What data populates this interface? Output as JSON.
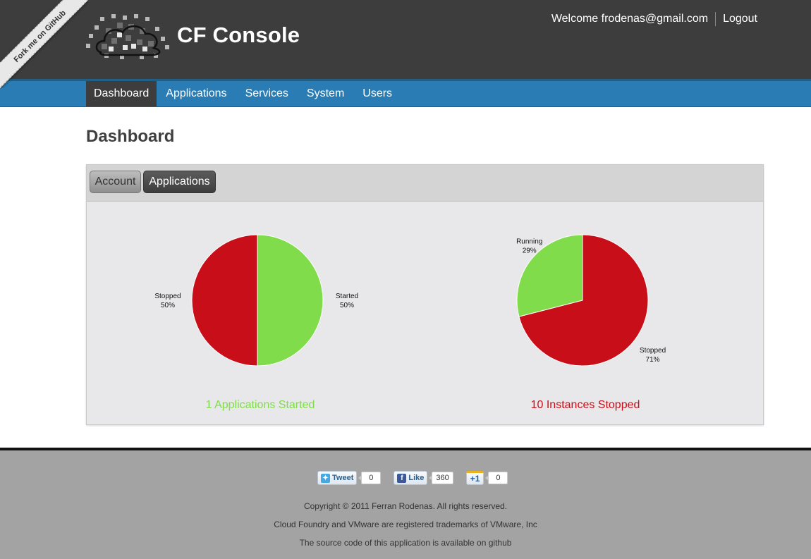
{
  "header": {
    "fork_ribbon": "Fork me on GitHub",
    "brand": "CF Console",
    "welcome": "Welcome frodenas@gmail.com",
    "logout": "Logout"
  },
  "nav": {
    "items": [
      {
        "label": "Dashboard",
        "active": true
      },
      {
        "label": "Applications"
      },
      {
        "label": "Services"
      },
      {
        "label": "System"
      },
      {
        "label": "Users"
      }
    ]
  },
  "main": {
    "title": "Dashboard",
    "tabs": [
      {
        "label": "Account"
      },
      {
        "label": "Applications",
        "active": true
      }
    ],
    "applications_caption": "1 Applications Started",
    "instances_caption": "10 Instances Stopped"
  },
  "colors": {
    "started": "#80dc4b",
    "stopped": "#c80e18"
  },
  "chart_data": [
    {
      "type": "pie",
      "title": "",
      "categories": [
        "Stopped",
        "Started"
      ],
      "values": [
        50,
        50
      ],
      "labels": [
        "50%",
        "50%"
      ]
    },
    {
      "type": "pie",
      "title": "",
      "categories": [
        "Running",
        "Stopped"
      ],
      "values": [
        29,
        71
      ],
      "labels": [
        "29%",
        "71%"
      ]
    }
  ],
  "footer": {
    "tweet": "Tweet",
    "tweet_count": "0",
    "like": "Like",
    "like_count": "360",
    "plus_one": "+1",
    "plus_one_count": "0",
    "copyright": "Copyright © 2011 Ferran Rodenas. All rights reserved.",
    "trademarks": "Cloud Foundry and VMware are registered trademarks of VMware, Inc",
    "source": "The source code of this application is available on github"
  }
}
